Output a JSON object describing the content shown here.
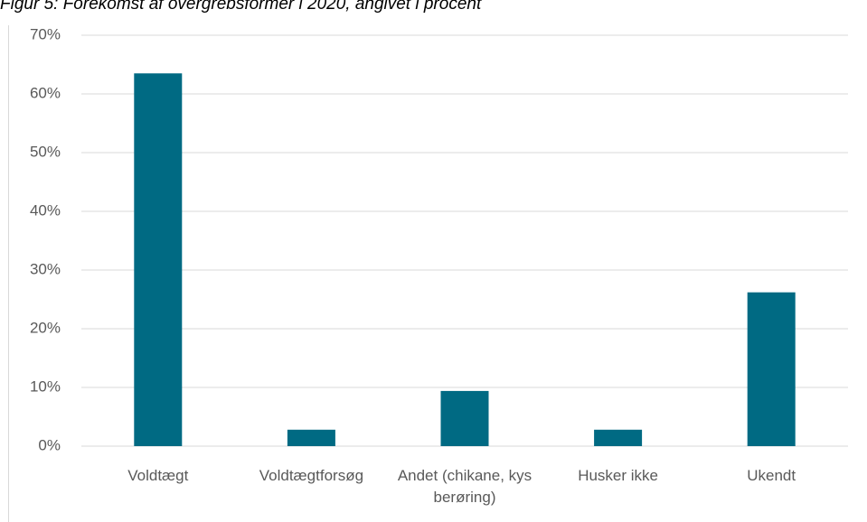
{
  "chart_data": {
    "type": "bar",
    "title": "Figur 5: Forekomst af overgrebsformer i 2020, angivet i procent",
    "categories": [
      "Voldtægt",
      "Voldtægtforsøg",
      "Andet (chikane, kys berøring)",
      "Husker ikke",
      "Ukendt"
    ],
    "values": [
      63.5,
      2.8,
      9.4,
      2.8,
      26.2
    ],
    "color": "#006a83",
    "ylim": [
      0,
      70
    ],
    "yticks": [
      {
        "value": 0,
        "label": "0%"
      },
      {
        "value": 10,
        "label": "10%"
      },
      {
        "value": 20,
        "label": "20%"
      },
      {
        "value": 30,
        "label": "30%"
      },
      {
        "value": 40,
        "label": "40%"
      },
      {
        "value": 50,
        "label": "50%"
      },
      {
        "value": 60,
        "label": "60%"
      },
      {
        "value": 70,
        "label": "70%"
      }
    ],
    "grid": true
  }
}
